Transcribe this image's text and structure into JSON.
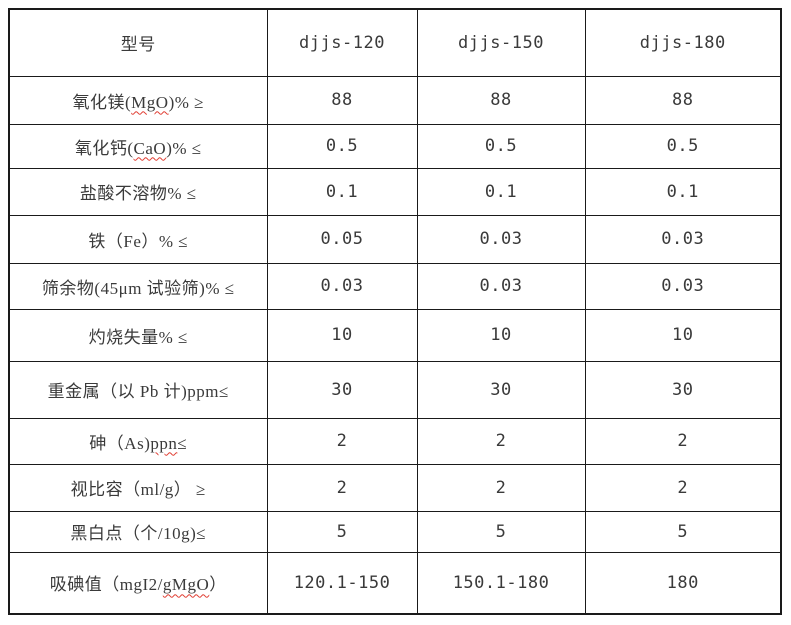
{
  "table": {
    "border_color": "#1a1a1a",
    "text_color": "#3a3a3a",
    "squiggle_color": "#e03c31",
    "header": {
      "model_label": "型号",
      "columns": [
        "djjs-120",
        "djjs-150",
        "djjs-180"
      ]
    },
    "rows": [
      {
        "pre": "氧化镁(",
        "squiggle": "MgO",
        "post": ")% ≥",
        "values": [
          "88",
          "88",
          "88"
        ]
      },
      {
        "pre": "氧化钙(",
        "squiggle": "CaO",
        "post": ")% ≤",
        "values": [
          "0.5",
          "0.5",
          "0.5"
        ]
      },
      {
        "pre": "盐酸不溶物% ≤",
        "squiggle": "",
        "post": "",
        "values": [
          "0.1",
          "0.1",
          "0.1"
        ]
      },
      {
        "pre": "铁（Fe）% ≤",
        "squiggle": "",
        "post": "",
        "values": [
          "0.05",
          "0.03",
          "0.03"
        ]
      },
      {
        "pre": "筛余物(45μm 试验筛)% ≤",
        "squiggle": "",
        "post": "",
        "values": [
          "0.03",
          "0.03",
          "0.03"
        ]
      },
      {
        "pre": "灼烧失量% ≤",
        "squiggle": "",
        "post": "",
        "values": [
          "10",
          "10",
          "10"
        ]
      },
      {
        "pre": "重金属（以 Pb 计)ppm≤",
        "squiggle": "",
        "post": "",
        "values": [
          "30",
          "30",
          "30"
        ]
      },
      {
        "pre": "砷（As)",
        "squiggle": "ppn",
        "post": "≤",
        "values": [
          "2",
          "2",
          "2"
        ]
      },
      {
        "pre": "视比容（ml/g） ≥",
        "squiggle": "",
        "post": "",
        "values": [
          "2",
          "2",
          "2"
        ]
      },
      {
        "pre": "黑白点（个/10g)≤",
        "squiggle": "",
        "post": "",
        "values": [
          "5",
          "5",
          "5"
        ]
      },
      {
        "pre": "吸碘值（mgI2/",
        "squiggle": "gMgO",
        "post": "）",
        "values": [
          "120.1-150",
          "150.1-180",
          "180"
        ]
      }
    ]
  }
}
